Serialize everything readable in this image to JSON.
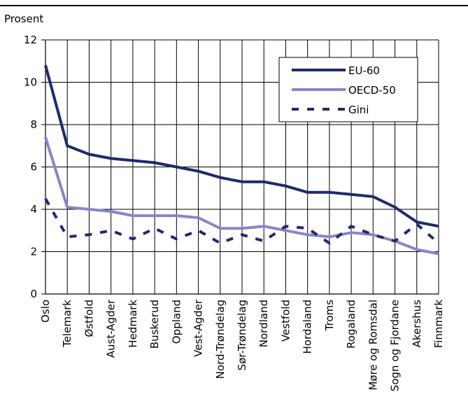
{
  "chart_data": {
    "type": "line",
    "ylabel": "Prosent",
    "ylim": [
      0,
      12
    ],
    "yticks": [
      0,
      2,
      4,
      6,
      8,
      10,
      12
    ],
    "grid": true,
    "legend_position": "top-right",
    "categories": [
      "Oslo",
      "Telemark",
      "Østfold",
      "Aust-Agder",
      "Hedmark",
      "Buskerud",
      "Oppland",
      "Vest-Agder",
      "Nord-Trøndelag",
      "Sør-Trøndelag",
      "Nordland",
      "Vestfold",
      "Hordaland",
      "Troms",
      "Rogaland",
      "Møre og Romsdal",
      "Sogn og Fjordane",
      "Akershus",
      "Finnmark"
    ],
    "series": [
      {
        "name": "EU-60",
        "color": "#1f2a6b",
        "style": "solid",
        "values": [
          10.8,
          7.0,
          6.6,
          6.4,
          6.3,
          6.2,
          6.0,
          5.8,
          5.5,
          5.3,
          5.3,
          5.1,
          4.8,
          4.8,
          4.7,
          4.6,
          4.1,
          3.4,
          3.2
        ]
      },
      {
        "name": "OECD-50",
        "color": "#8a85c6",
        "style": "solid",
        "values": [
          7.4,
          4.1,
          4.0,
          3.9,
          3.7,
          3.7,
          3.7,
          3.6,
          3.1,
          3.1,
          3.2,
          3.0,
          2.8,
          2.7,
          2.9,
          2.8,
          2.5,
          2.1,
          1.9
        ]
      },
      {
        "name": "Gini",
        "color": "#1f2a6b",
        "style": "dashed",
        "values": [
          4.5,
          2.7,
          2.8,
          3.0,
          2.6,
          3.1,
          2.6,
          3.0,
          2.4,
          2.8,
          2.5,
          3.2,
          3.1,
          2.4,
          3.2,
          2.8,
          2.5,
          3.3,
          2.4
        ]
      }
    ]
  }
}
